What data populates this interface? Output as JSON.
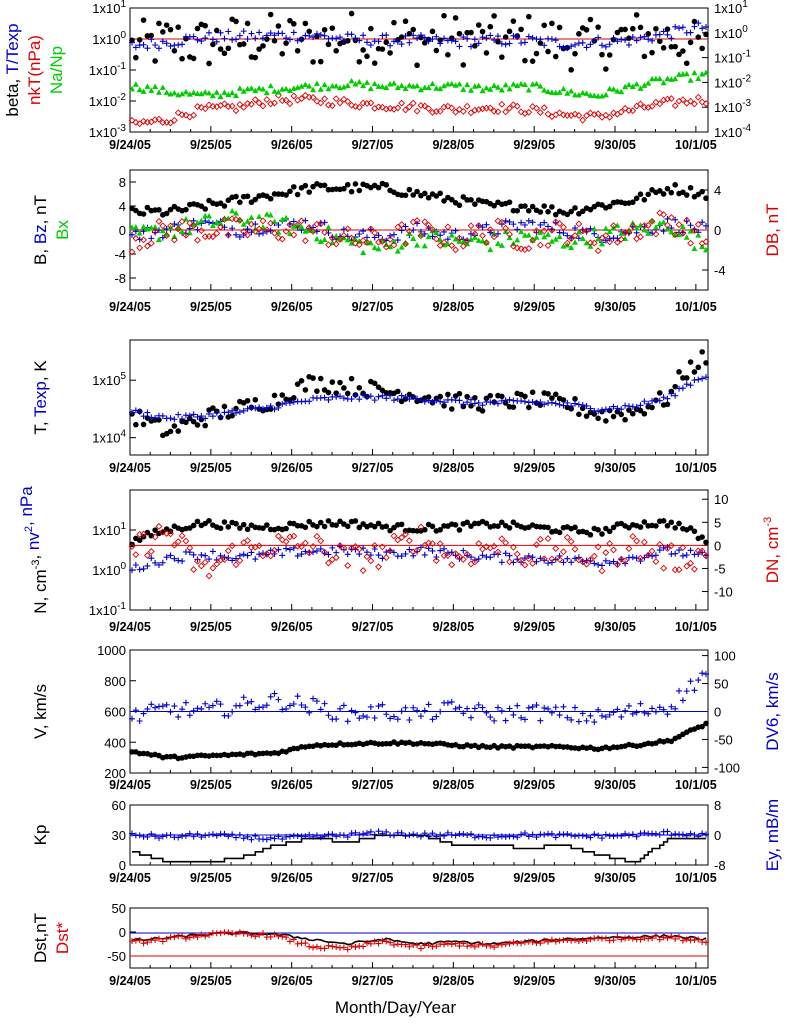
{
  "figure": {
    "x_axis_title": "Month/Day/Year",
    "date_ticks": [
      "9/24/05",
      "9/25/05",
      "9/26/05",
      "9/27/05",
      "9/28/05",
      "9/29/05",
      "9/30/05",
      "10/1/05"
    ]
  },
  "colors": {
    "black": "#000000",
    "blue": "#0000cc",
    "red": "#dd0000",
    "green": "#00cc00"
  },
  "chart_data": [
    {
      "type": "scatter",
      "panel": "beta",
      "ylabel_left": [
        {
          "text": "beta, ",
          "color": "#000000"
        },
        {
          "text": "T/Texp",
          "color": "#0000cc"
        }
      ],
      "ylabel_left2": [
        {
          "text": "nkT(nPa)",
          "color": "#dd0000"
        }
      ],
      "ylabel_left3": [
        {
          "text": "Na/Np",
          "color": "#00cc00"
        }
      ],
      "y_scale": "log",
      "ylim_left": [
        0.001,
        10
      ],
      "yticks_left": [
        "1x10-3",
        "1x10-2",
        "1x10-1",
        "1x100",
        "1x101"
      ],
      "ylim_right": [
        0.0001,
        10
      ],
      "yticks_right": [
        "1x10-4",
        "1x10-3",
        "1x10-2",
        "1x10-1",
        "1x100",
        "1x101"
      ],
      "x_range_days": [
        "9/24/05",
        "10/1/05 +"
      ],
      "reference_line": {
        "value": 1,
        "color": "#dd0000"
      },
      "series": [
        {
          "name": "beta",
          "color": "#000000",
          "marker": "dot",
          "axis": "left",
          "trend": [
            0.5,
            0.8,
            0.7,
            0.9,
            1.0,
            0.8,
            1.2,
            1.1,
            0.9,
            1.0,
            0.8,
            1.0,
            0.7,
            0.6,
            1.2,
            1.0,
            0.4
          ],
          "jitter": 1.4
        },
        {
          "name": "T/Texp",
          "color": "#0000cc",
          "marker": "plus",
          "axis": "left",
          "trend": [
            0.6,
            0.8,
            1.1,
            1.2,
            1.3,
            1.3,
            1.0,
            0.9,
            0.9,
            0.8,
            0.9,
            0.9,
            0.7,
            0.8,
            0.9,
            1.5,
            2.5
          ],
          "jitter": 0.3
        },
        {
          "name": "nkT(nPa)",
          "color": "#dd0000",
          "marker": "diamond",
          "axis": "right",
          "trend": [
            0.0002,
            0.0003,
            0.0008,
            0.001,
            0.002,
            0.002,
            0.0015,
            0.0012,
            0.001,
            0.0008,
            0.001,
            0.0008,
            0.0005,
            0.0004,
            0.0008,
            0.0015,
            0.002
          ],
          "jitter": 0.3
        },
        {
          "name": "Na/Np",
          "color": "#00cc00",
          "marker": "triangle",
          "axis": "left",
          "trend": [
            0.03,
            0.02,
            0.015,
            0.02,
            0.025,
            0.03,
            0.035,
            0.03,
            0.03,
            0.03,
            0.025,
            0.03,
            0.02,
            0.015,
            0.03,
            0.05,
            0.07
          ],
          "jitter": 0.2
        }
      ]
    },
    {
      "type": "scatter",
      "panel": "B",
      "ylabel_left": [
        {
          "text": "B, ",
          "color": "#000000"
        },
        {
          "text": "Bz",
          "color": "#0000cc"
        },
        {
          "text": ", nT",
          "color": "#000000"
        }
      ],
      "ylabel_left2": [
        {
          "text": "Bx",
          "color": "#00cc00"
        }
      ],
      "ylabel_right": [
        {
          "text": "DB, nT",
          "color": "#dd0000"
        }
      ],
      "ylim_left": [
        -10,
        10
      ],
      "yticks_left": [
        "-8",
        "-4",
        "0",
        "4",
        "8"
      ],
      "ylim_right": [
        -6,
        6
      ],
      "yticks_right": [
        "-4",
        "0",
        "4"
      ],
      "reference_line": {
        "value": 0,
        "color": "#dd0000"
      },
      "series": [
        {
          "name": "B",
          "color": "#000000",
          "marker": "dot",
          "axis": "left",
          "trend": [
            3,
            3,
            4,
            5,
            6,
            7,
            7,
            7,
            6,
            5,
            4,
            4,
            3,
            4,
            5,
            7,
            6
          ],
          "jitter": 0.8
        },
        {
          "name": "Bz",
          "color": "#0000cc",
          "marker": "plus",
          "axis": "left",
          "trend": [
            -1,
            0,
            1,
            0,
            1,
            1,
            -1,
            -1,
            0,
            -1,
            0,
            1,
            0,
            -1,
            0,
            1,
            0
          ],
          "jitter": 1.2
        },
        {
          "name": "Bx",
          "color": "#00cc00",
          "marker": "triangle",
          "axis": "left",
          "trend": [
            -1,
            0,
            1,
            2,
            1,
            0,
            -2,
            -3,
            -1,
            -2,
            -2,
            -1,
            -2,
            -1,
            0,
            1,
            -3
          ],
          "jitter": 1.5
        },
        {
          "name": "DB",
          "color": "#dd0000",
          "marker": "diamond",
          "axis": "right",
          "trend": [
            -1,
            0,
            0,
            0,
            0,
            0,
            -1,
            -1,
            0,
            -1,
            0,
            -1,
            0,
            -1,
            0,
            1,
            -1
          ],
          "jitter": 1.2
        }
      ]
    },
    {
      "type": "scatter",
      "panel": "T",
      "ylabel_left": [
        {
          "text": "T, ",
          "color": "#000000"
        },
        {
          "text": "Texp",
          "color": "#0000cc"
        },
        {
          "text": ", K",
          "color": "#000000"
        }
      ],
      "y_scale": "log",
      "ylim_left": [
        5000,
        500000
      ],
      "yticks_left": [
        "1x104",
        "1x105"
      ],
      "series": [
        {
          "name": "T",
          "color": "#000000",
          "marker": "dot",
          "axis": "left",
          "trend": [
            24000,
            12000,
            22000,
            32000,
            45000,
            90000,
            80000,
            65000,
            55000,
            42000,
            40000,
            45000,
            40000,
            25000,
            28000,
            50000,
            250000
          ],
          "jitter": 0.25
        },
        {
          "name": "Texp",
          "color": "#0000cc",
          "marker": "plus",
          "axis": "left",
          "trend": [
            28000,
            22000,
            24000,
            28000,
            35000,
            45000,
            50000,
            50000,
            48000,
            42000,
            40000,
            42000,
            38000,
            32000,
            35000,
            50000,
            120000
          ],
          "jitter": 0.08
        }
      ]
    },
    {
      "type": "scatter",
      "panel": "N",
      "ylabel_left": [
        {
          "text": "N, cm",
          "color": "#000000"
        },
        {
          "text": "-3",
          "color": "#000000",
          "sup": true
        },
        {
          "text": ", ",
          "color": "#000000"
        },
        {
          "text": "nv",
          "color": "#0000cc"
        },
        {
          "text": "2",
          "color": "#0000cc",
          "sup": true
        },
        {
          "text": ", nPa",
          "color": "#0000cc"
        }
      ],
      "ylabel_right": [
        {
          "text": "DN, cm",
          "color": "#dd0000"
        },
        {
          "text": "-3",
          "color": "#dd0000",
          "sup": true
        }
      ],
      "y_scale": "log",
      "ylim_left": [
        0.1,
        100
      ],
      "yticks_left": [
        "1x10-1",
        "1x100",
        "1x101"
      ],
      "ylim_right": [
        -14,
        12
      ],
      "yticks_right": [
        "-10",
        "-5",
        "0",
        "5",
        "10"
      ],
      "reference_line": {
        "value": 0,
        "axis": "right",
        "color": "#dd0000"
      },
      "series": [
        {
          "name": "N",
          "color": "#000000",
          "marker": "dot",
          "axis": "left",
          "trend": [
            5,
            10,
            15,
            12,
            12,
            14,
            15,
            12,
            11,
            12,
            14,
            12,
            10,
            9,
            14,
            15,
            5
          ],
          "jitter": 0.15
        },
        {
          "name": "nv2",
          "color": "#0000cc",
          "marker": "plus",
          "axis": "left",
          "trend": [
            1,
            2,
            2.5,
            2,
            2.5,
            3,
            3,
            2.5,
            3,
            2.5,
            2,
            2,
            1.8,
            1.6,
            2,
            3,
            2
          ],
          "jitter": 0.2
        },
        {
          "name": "DN",
          "color": "#dd0000",
          "marker": "diamond",
          "axis": "right",
          "trend": [
            -1,
            3,
            -6,
            -1,
            0,
            0,
            -3,
            -2,
            2,
            -3,
            0,
            -2,
            -1,
            -3,
            0,
            -3,
            -2
          ],
          "jitter": 3
        }
      ]
    },
    {
      "type": "scatter",
      "panel": "V",
      "ylabel_left": [
        {
          "text": "V, km/s",
          "color": "#000000"
        }
      ],
      "ylabel_right": [
        {
          "text": "DV6, km/s",
          "color": "#0000cc"
        }
      ],
      "ylim_left": [
        200,
        1000
      ],
      "yticks_left": [
        "200",
        "400",
        "600",
        "800",
        "1000"
      ],
      "ylim_right": [
        -110,
        110
      ],
      "yticks_right": [
        "-100",
        "-50",
        "0",
        "50",
        "100"
      ],
      "reference_line": {
        "value": 0,
        "axis": "right",
        "color": "#0000cc"
      },
      "series": [
        {
          "name": "V",
          "color": "#000000",
          "marker": "dot",
          "axis": "left",
          "trend": [
            340,
            300,
            310,
            320,
            330,
            380,
            390,
            395,
            395,
            380,
            370,
            370,
            370,
            360,
            380,
            410,
            520
          ],
          "jitter": 8
        },
        {
          "name": "DV6",
          "color": "#0000cc",
          "marker": "plus",
          "axis": "right",
          "trend": [
            -10,
            5,
            0,
            10,
            20,
            10,
            -5,
            0,
            -5,
            5,
            -5,
            0,
            -5,
            -10,
            0,
            10,
            70
          ],
          "jitter": 15
        }
      ]
    },
    {
      "type": "line",
      "panel": "Kp",
      "ylabel_left": [
        {
          "text": "Kp",
          "color": "#000000"
        }
      ],
      "ylabel_right": [
        {
          "text": "Ey, mB/m",
          "color": "#0000cc"
        }
      ],
      "ylim_left": [
        0,
        60
      ],
      "yticks_left": [
        "0",
        "30",
        "60"
      ],
      "ylim_right": [
        -8,
        8
      ],
      "yticks_right": [
        "-8",
        "0",
        "8"
      ],
      "reference_line": {
        "value": 0,
        "axis": "right",
        "color": "#0000cc"
      },
      "series": [
        {
          "name": "Kp",
          "color": "#000000",
          "marker": "step",
          "axis": "left",
          "trend": [
            13,
            3,
            3,
            7,
            20,
            27,
            23,
            30,
            30,
            20,
            20,
            17,
            20,
            10,
            3,
            27,
            27
          ],
          "jitter": 0
        },
        {
          "name": "Ey",
          "color": "#0000cc",
          "marker": "plus",
          "axis": "right",
          "trend": [
            0,
            -0.5,
            0,
            -0.5,
            -1,
            -0.5,
            0,
            0.5,
            0,
            0,
            -0.3,
            0,
            -0.2,
            -0.3,
            0,
            0.5,
            0
          ],
          "jitter": 0.6
        }
      ]
    },
    {
      "type": "line",
      "panel": "Dst",
      "ylabel_left": [
        {
          "text": "Dst,nT",
          "color": "#000000"
        }
      ],
      "ylabel_left2": [
        {
          "text": "Dst*",
          "color": "#dd0000"
        }
      ],
      "ylim_left": [
        -75,
        50
      ],
      "yticks_left": [
        "-50",
        "0",
        "50"
      ],
      "reference_lines": [
        {
          "value": -2,
          "color": "#0000cc"
        },
        {
          "value": -50,
          "color": "#dd0000"
        }
      ],
      "series": [
        {
          "name": "Dst",
          "color": "#000000",
          "marker": "line",
          "axis": "left",
          "trend": [
            -18,
            -12,
            -5,
            -2,
            -5,
            -15,
            -25,
            -15,
            -25,
            -20,
            -25,
            -20,
            -15,
            -12,
            -10,
            -8,
            -15
          ],
          "jitter": 3
        },
        {
          "name": "Dst*",
          "color": "#dd0000",
          "marker": "plus",
          "axis": "left",
          "trend": [
            -22,
            -15,
            -6,
            -3,
            -8,
            -30,
            -35,
            -20,
            -32,
            -25,
            -30,
            -22,
            -18,
            -15,
            -12,
            -12,
            -18
          ],
          "jitter": 4
        }
      ]
    }
  ]
}
